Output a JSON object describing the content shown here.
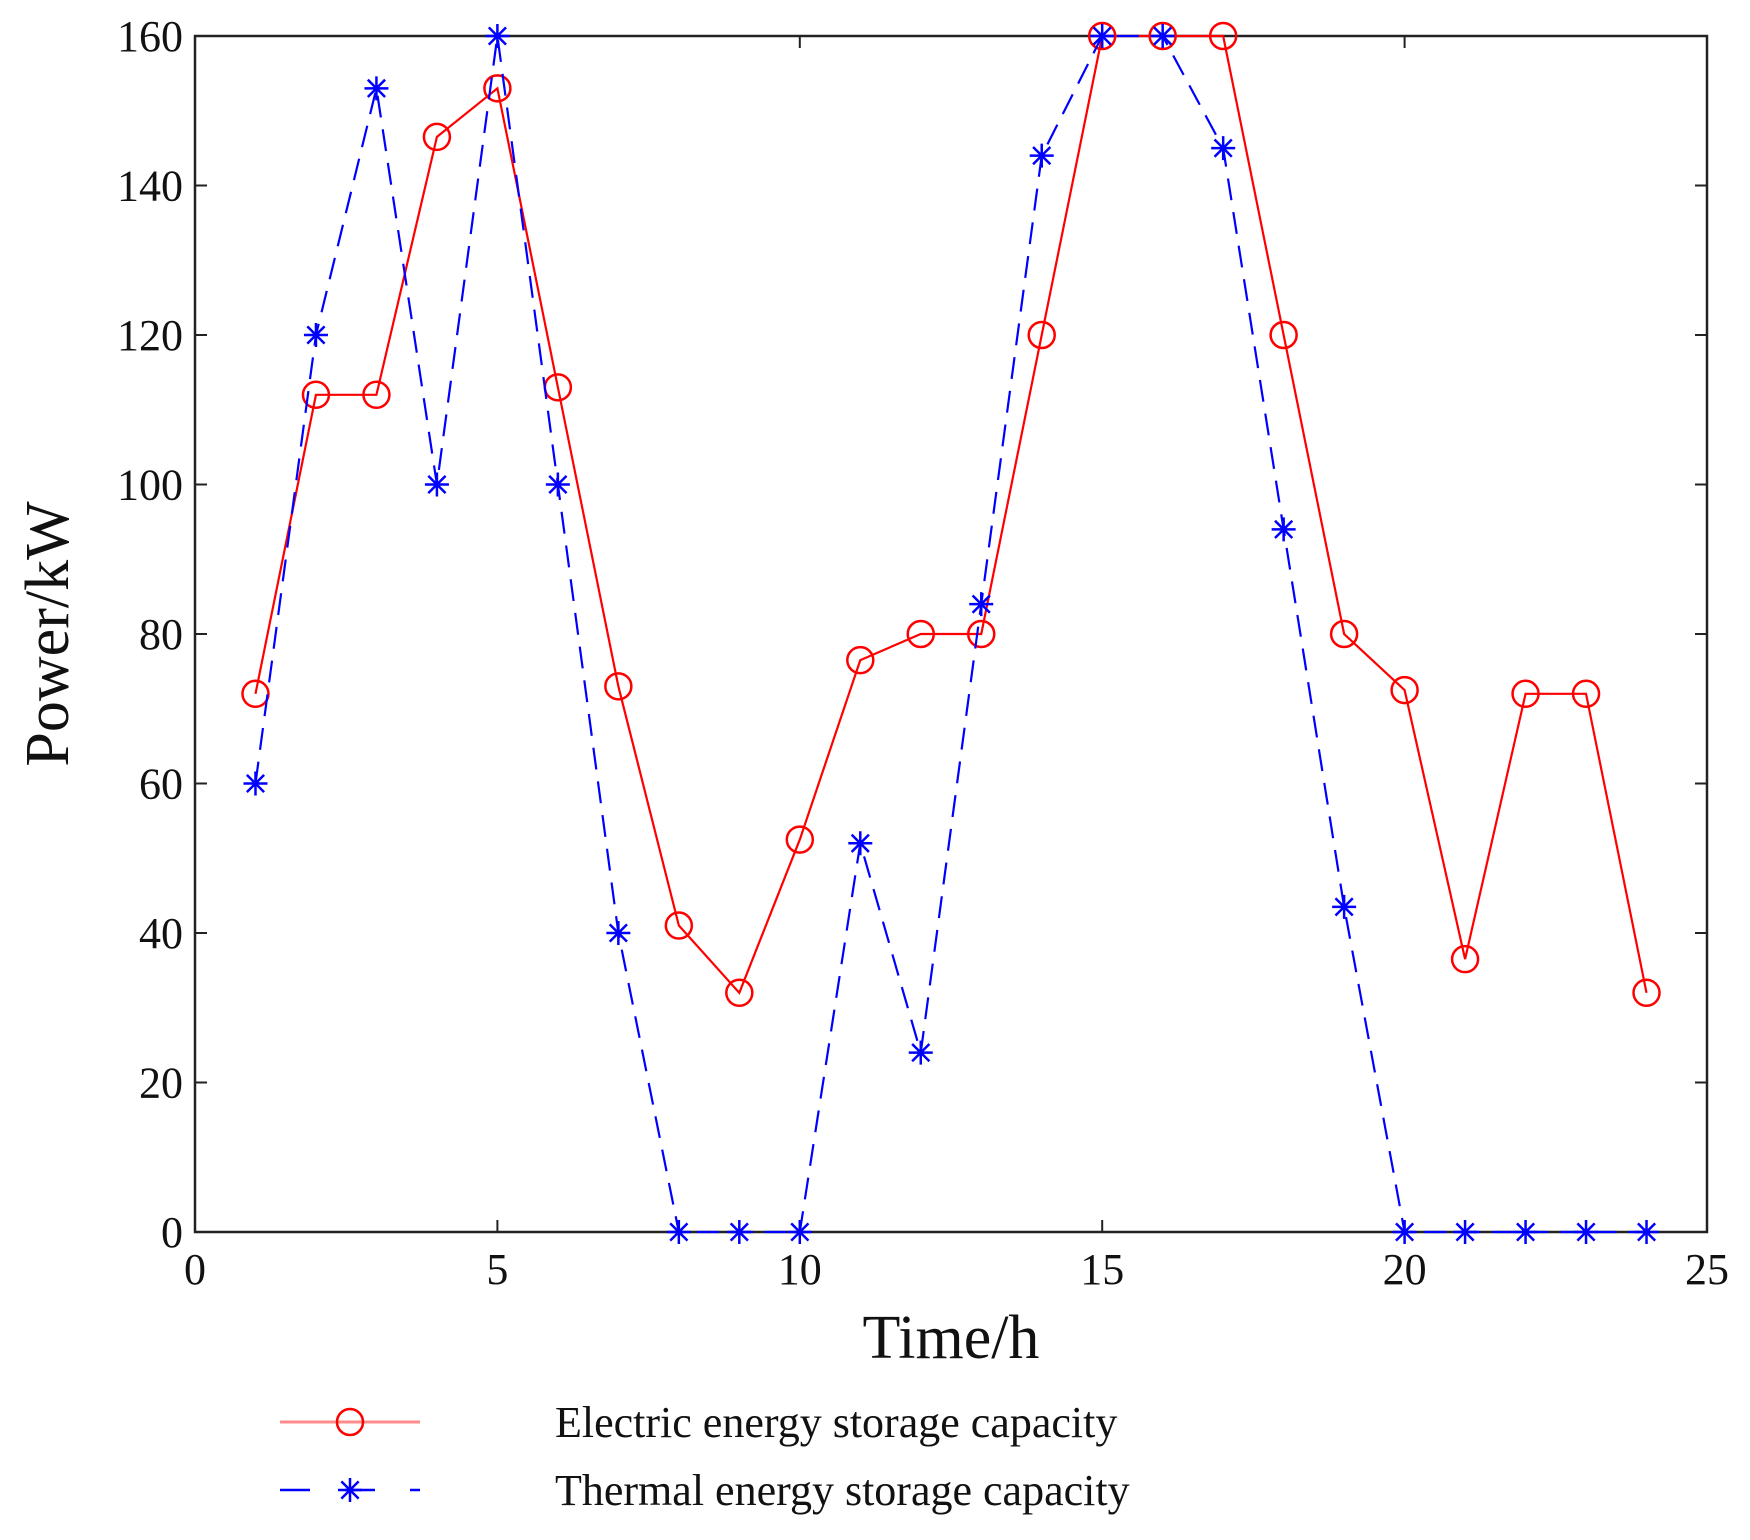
{
  "chart_data": {
    "type": "line",
    "title": "",
    "xlabel": "Time/h",
    "ylabel": "Power/kW",
    "xlim": [
      0,
      25
    ],
    "ylim": [
      0,
      160
    ],
    "xticks": [
      0,
      5,
      10,
      15,
      20,
      25
    ],
    "yticks": [
      0,
      20,
      40,
      60,
      80,
      100,
      120,
      140,
      160
    ],
    "grid": false,
    "legend_position": "bottom",
    "x": [
      1,
      2,
      3,
      4,
      5,
      6,
      7,
      8,
      9,
      10,
      11,
      12,
      13,
      14,
      15,
      16,
      17,
      18,
      19,
      20,
      21,
      22,
      23,
      24
    ],
    "series": [
      {
        "name": "Electric energy storage capacity",
        "color": "#ff0000",
        "line_style": "solid",
        "marker": "circle",
        "values": [
          72,
          112,
          112,
          146.5,
          153,
          113,
          73,
          41,
          32,
          52.5,
          76.5,
          80,
          80,
          120,
          160,
          160,
          160,
          120,
          80,
          72.5,
          36.5,
          72,
          72,
          32
        ]
      },
      {
        "name": "Thermal energy storage capacity",
        "color": "#0000ff",
        "line_style": "dashed",
        "marker": "asterisk",
        "values": [
          60,
          120,
          153,
          100,
          160,
          100,
          40,
          0,
          0,
          0,
          52,
          24,
          84,
          144,
          160,
          160,
          145,
          94,
          43.5,
          0,
          0,
          0,
          0,
          0
        ]
      }
    ]
  }
}
